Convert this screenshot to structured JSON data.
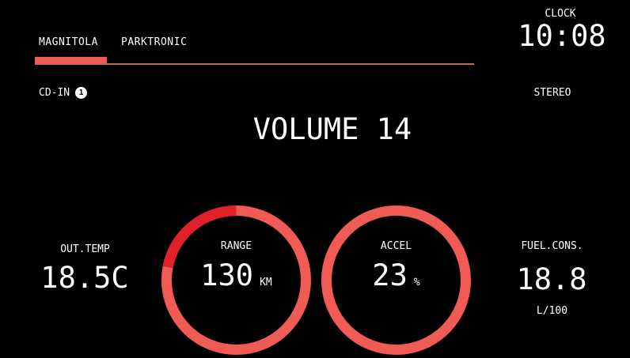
{
  "tabs": [
    {
      "label": "MAGNITOLA",
      "active": true
    },
    {
      "label": "PARKTRONIC",
      "active": false
    }
  ],
  "clock": {
    "label": "CLOCK",
    "time": "10:08"
  },
  "source": {
    "label": "CD-IN",
    "disc": "1",
    "mode": "STEREO"
  },
  "volume": {
    "text": "VOLUME 14",
    "level": 14
  },
  "out_temp": {
    "label": "OUT.TEMP",
    "value": "18.5C"
  },
  "range": {
    "label": "RANGE",
    "value": "130",
    "unit": "KM",
    "fill_fraction": 0.22
  },
  "accel": {
    "label": "ACCEL",
    "value": "23",
    "unit": "%"
  },
  "fuel": {
    "label": "FUEL.CONS.",
    "value": "18.8",
    "unit": "L/100"
  },
  "colors": {
    "accent": "#f15b55",
    "gauge_fill": "#e0202a",
    "tab_track": "#b06a5a",
    "background": "#000000",
    "text": "#ffffff"
  }
}
